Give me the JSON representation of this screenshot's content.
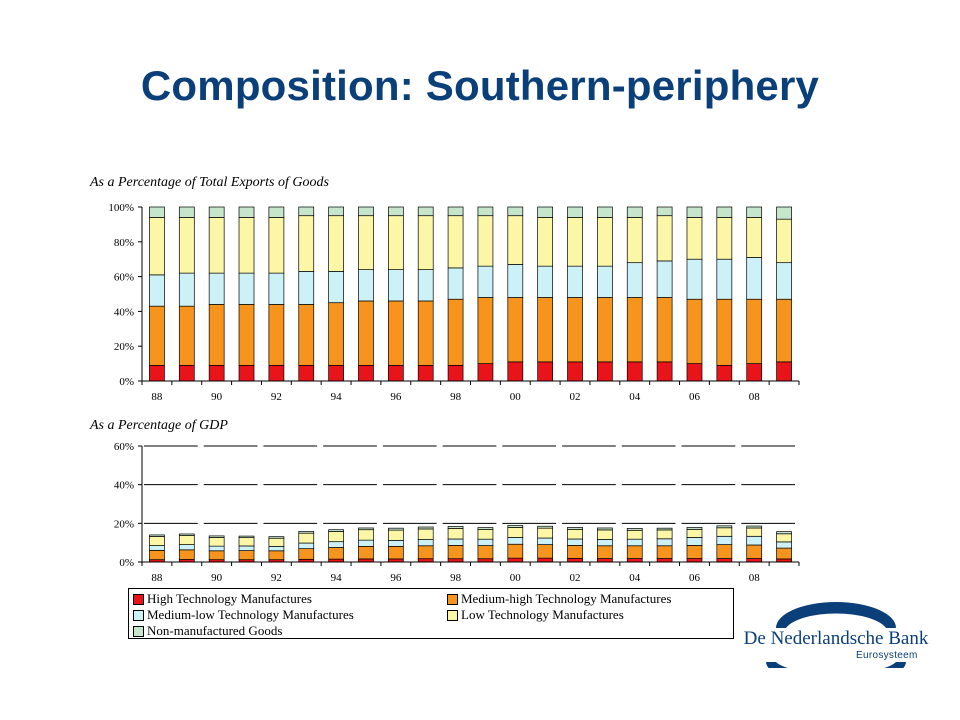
{
  "slide": {
    "title": "Composition: Southern-periphery"
  },
  "colors": {
    "title": "#0b3f7a",
    "high": "#e8141a",
    "medium_high": "#f7941d",
    "medium_low": "#ccf2f8",
    "low": "#fbf7a6",
    "non_manufactured": "#c6e6cc"
  },
  "chart_data": [
    {
      "type": "bar",
      "stacked": true,
      "subtitle": "As a Percentage of Total Exports of Goods",
      "categories": [
        "88",
        "89",
        "90",
        "91",
        "92",
        "93",
        "94",
        "95",
        "96",
        "97",
        "98",
        "99",
        "00",
        "01",
        "02",
        "03",
        "04",
        "05",
        "06",
        "07",
        "08",
        "09"
      ],
      "tick_labels": [
        "88",
        "",
        "90",
        "",
        "92",
        "",
        "94",
        "",
        "96",
        "",
        "98",
        "",
        "00",
        "",
        "02",
        "",
        "04",
        "",
        "06",
        "",
        "08",
        ""
      ],
      "ylim": [
        0,
        100
      ],
      "yticks": [
        "0%",
        "20%",
        "40%",
        "60%",
        "80%",
        "100%"
      ],
      "grid": false,
      "series": [
        {
          "name": "High Technology Manufactures",
          "color_key": "high",
          "values": [
            9,
            9,
            9,
            9,
            9,
            9,
            9,
            9,
            9,
            9,
            9,
            10,
            11,
            11,
            11,
            11,
            11,
            11,
            10,
            9,
            10,
            11
          ]
        },
        {
          "name": "Medium-high Technology Manufactures",
          "color_key": "medium_high",
          "values": [
            34,
            34,
            35,
            35,
            35,
            35,
            36,
            37,
            37,
            37,
            38,
            38,
            37,
            37,
            37,
            37,
            37,
            37,
            37,
            38,
            37,
            36
          ]
        },
        {
          "name": "Medium-low Technology Manufactures",
          "color_key": "medium_low",
          "values": [
            18,
            19,
            18,
            18,
            18,
            19,
            18,
            18,
            18,
            18,
            18,
            18,
            19,
            18,
            18,
            18,
            20,
            21,
            23,
            23,
            24,
            21
          ]
        },
        {
          "name": "Low Technology Manufactures",
          "color_key": "low",
          "values": [
            33,
            32,
            32,
            32,
            32,
            32,
            32,
            31,
            31,
            31,
            30,
            29,
            28,
            28,
            28,
            28,
            26,
            26,
            24,
            24,
            23,
            25
          ]
        },
        {
          "name": "Non-manufactured Goods",
          "color_key": "non_manufactured",
          "values": [
            6,
            6,
            6,
            6,
            6,
            5,
            5,
            5,
            5,
            5,
            5,
            5,
            5,
            6,
            6,
            6,
            6,
            5,
            6,
            6,
            6,
            7
          ]
        }
      ]
    },
    {
      "type": "bar",
      "stacked": true,
      "subtitle": "As a Percentage of GDP",
      "categories": [
        "88",
        "89",
        "90",
        "91",
        "92",
        "93",
        "94",
        "95",
        "96",
        "97",
        "98",
        "99",
        "00",
        "01",
        "02",
        "03",
        "04",
        "05",
        "06",
        "07",
        "08",
        "09"
      ],
      "tick_labels": [
        "88",
        "",
        "90",
        "",
        "92",
        "",
        "94",
        "",
        "96",
        "",
        "98",
        "",
        "00",
        "",
        "02",
        "",
        "04",
        "",
        "06",
        "",
        "08",
        ""
      ],
      "ylim": [
        0,
        60
      ],
      "yticks": [
        "0%",
        "20%",
        "40%",
        "60%"
      ],
      "grid": true,
      "series": [
        {
          "name": "High Technology Manufactures",
          "color_key": "high",
          "values": [
            1.2,
            1.3,
            1.2,
            1.2,
            1.2,
            1.4,
            1.5,
            1.6,
            1.6,
            1.7,
            1.7,
            1.7,
            2.0,
            2.0,
            1.9,
            1.8,
            1.8,
            1.8,
            1.8,
            1.8,
            1.8,
            1.6
          ]
        },
        {
          "name": "Medium-high Technology Manufactures",
          "color_key": "medium_high",
          "values": [
            4.8,
            5.0,
            4.6,
            4.7,
            4.6,
            5.5,
            6.0,
            6.5,
            6.5,
            6.7,
            6.9,
            6.8,
            7.2,
            7.0,
            6.7,
            6.6,
            6.6,
            6.6,
            6.8,
            7.2,
            7.0,
            5.6
          ]
        },
        {
          "name": "Medium-low Technology Manufactures",
          "color_key": "medium_low",
          "values": [
            2.5,
            2.7,
            2.4,
            2.4,
            2.3,
            2.9,
            3.0,
            3.2,
            3.1,
            3.2,
            3.3,
            3.3,
            3.5,
            3.4,
            3.3,
            3.3,
            3.4,
            3.6,
            4.1,
            4.3,
            4.5,
            3.2
          ]
        },
        {
          "name": "Low Technology Manufactures",
          "color_key": "low",
          "values": [
            4.7,
            4.7,
            4.5,
            4.3,
            4.2,
            5.1,
            5.3,
            5.4,
            5.3,
            5.5,
            5.5,
            5.1,
            5.2,
            5.1,
            5.0,
            4.9,
            4.6,
            4.6,
            4.2,
            4.4,
            4.3,
            4.2
          ]
        },
        {
          "name": "Non-manufactured Goods",
          "color_key": "non_manufactured",
          "values": [
            0.8,
            0.8,
            0.8,
            0.8,
            0.8,
            0.9,
            0.9,
            0.9,
            1.0,
            1.0,
            1.0,
            0.9,
            1.0,
            1.0,
            1.0,
            1.0,
            1.0,
            0.9,
            1.0,
            1.0,
            1.0,
            1.1
          ]
        }
      ]
    }
  ],
  "legend": {
    "items": [
      {
        "label": "High Technology Manufactures",
        "color_key": "high"
      },
      {
        "label": "Medium-high Technology Manufactures",
        "color_key": "medium_high"
      },
      {
        "label": "Medium-low Technology Manufactures",
        "color_key": "medium_low"
      },
      {
        "label": "Low Technology Manufactures",
        "color_key": "low"
      },
      {
        "label": "Non-manufactured Goods",
        "color_key": "non_manufactured"
      }
    ]
  },
  "logo": {
    "name": "De Nederlandsche Bank",
    "sub": "Eurosysteem"
  }
}
